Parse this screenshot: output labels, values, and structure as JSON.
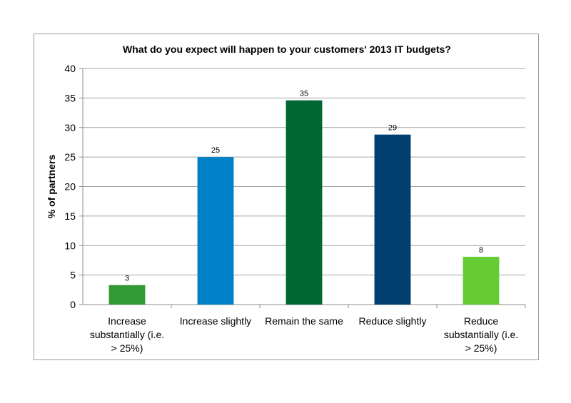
{
  "chart_data": {
    "type": "bar",
    "title": "What do you expect will happen to your customers' 2013 IT budgets?",
    "xlabel": "",
    "ylabel": "% of partners",
    "ylim": [
      0,
      40
    ],
    "yticks": [
      0,
      5,
      10,
      15,
      20,
      25,
      30,
      35,
      40
    ],
    "grid": true,
    "legend": "none",
    "categories": [
      [
        "Increase",
        "substantially (i.e.",
        "> 25%)"
      ],
      [
        "Increase slightly"
      ],
      [
        "Remain the same"
      ],
      [
        "Reduce slightly"
      ],
      [
        "Reduce",
        "substantially (i.e.",
        "> 25%)"
      ]
    ],
    "values": [
      3.3,
      25,
      34.6,
      28.8,
      8.1
    ],
    "data_labels": [
      "3",
      "25",
      "35",
      "29",
      "8"
    ],
    "colors": [
      "#339933",
      "#0080c6",
      "#006633",
      "#003f6f",
      "#66cc33"
    ]
  }
}
